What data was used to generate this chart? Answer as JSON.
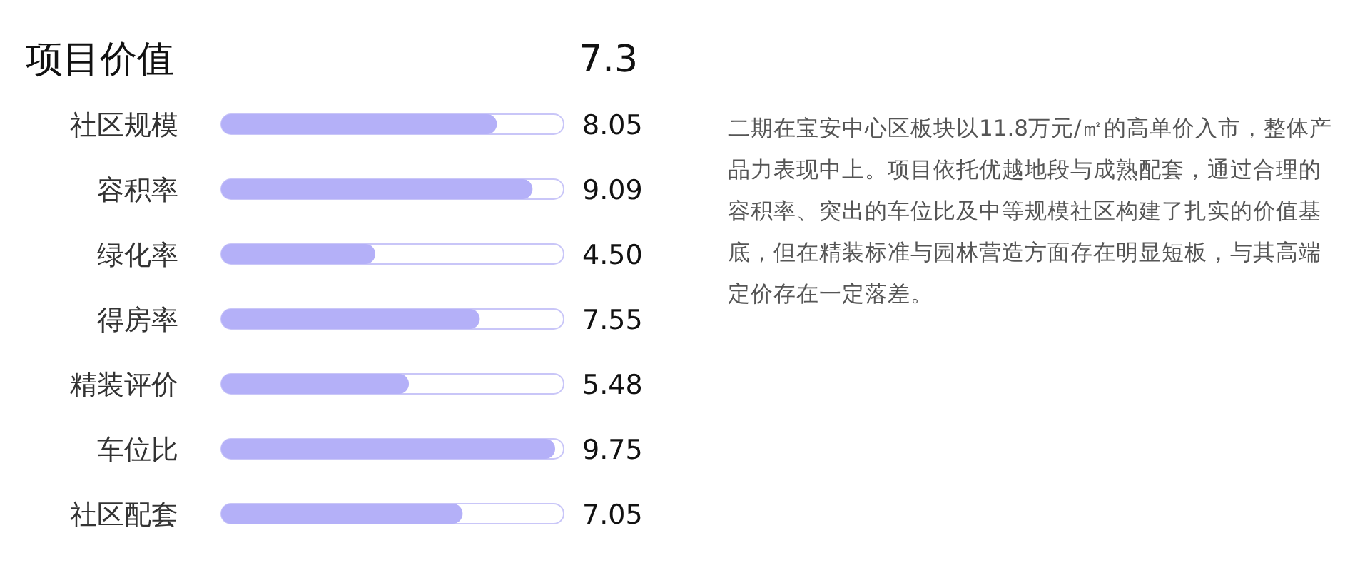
{
  "chart_data": {
    "type": "bar",
    "orientation": "horizontal",
    "title": "项目价值",
    "categories": [
      "社区规模",
      "容积率",
      "绿化率",
      "得房率",
      "精装评价",
      "车位比",
      "社区配套"
    ],
    "values": [
      8.05,
      9.09,
      4.5,
      7.55,
      5.48,
      9.75,
      7.05
    ],
    "value_labels": [
      "8.05",
      "9.09",
      "4.50",
      "7.55",
      "5.48",
      "9.75",
      "7.05"
    ],
    "color": "#b4b0f8",
    "xlim": [
      0,
      10
    ],
    "tick_labels": false,
    "annotations": [
      "7.3",
      "二期在宝安中心区板块以11.8万元/㎡的高单价入市，整体产品力表现中上。项目依托优越地段与成熟配套，通过合理的容积率、突出的车位比及中等规模社区构建了扎实的价值基底，但在精装标准与园林营造方面存在明显短板，与其高端定价存在一定落差。"
    ]
  }
}
